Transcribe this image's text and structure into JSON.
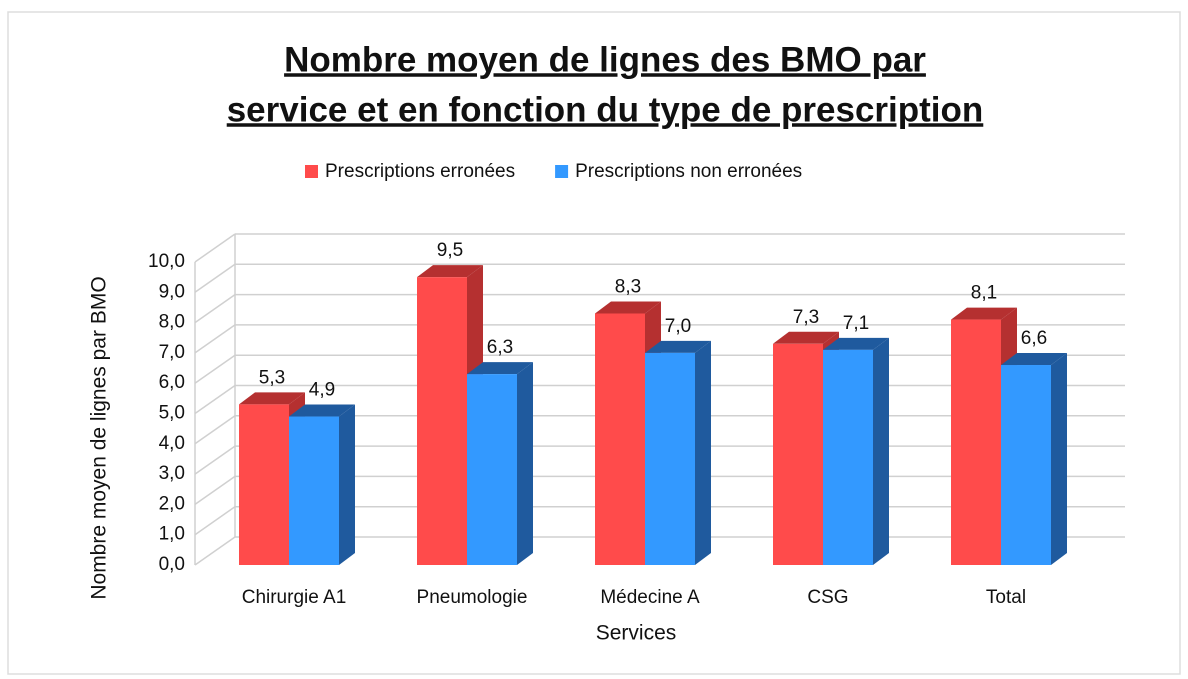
{
  "chart_data": {
    "type": "bar3d",
    "title": [
      "Nombre moyen de lignes des BMO par",
      "service et en fonction du type de prescription"
    ],
    "x_label": "Services",
    "y_label": "Nombre moyen de lignes par BMO",
    "categories": [
      "Chirurgie A1",
      "Pneumologie",
      "Médecine A",
      "CSG",
      "Total"
    ],
    "series": [
      {
        "name": "Prescriptions erronées",
        "color": "#ff4b4b",
        "side_color": "#b53030",
        "values": [
          5.3,
          9.5,
          8.3,
          7.3,
          8.1
        ],
        "value_labels": [
          "5,3",
          "9,5",
          "8,3",
          "7,3",
          "8,1"
        ]
      },
      {
        "name": "Prescriptions non erronées",
        "color": "#3399ff",
        "side_color": "#1f5a9e",
        "values": [
          4.9,
          6.3,
          7.0,
          7.1,
          6.6
        ],
        "value_labels": [
          "4,9",
          "6,3",
          "7,0",
          "7,1",
          "6,6"
        ]
      }
    ],
    "ylim": [
      0,
      10
    ],
    "yticks": [
      {
        "value": 0,
        "label": "0,0"
      },
      {
        "value": 1,
        "label": "1,0"
      },
      {
        "value": 2,
        "label": "2,0"
      },
      {
        "value": 3,
        "label": "3,0"
      },
      {
        "value": 4,
        "label": "4,0"
      },
      {
        "value": 5,
        "label": "5,0"
      },
      {
        "value": 6,
        "label": "6,0"
      },
      {
        "value": 7,
        "label": "7,0"
      },
      {
        "value": 8,
        "label": "8,0"
      },
      {
        "value": 9,
        "label": "9,0"
      },
      {
        "value": 10,
        "label": "10,0"
      }
    ],
    "grid": true,
    "legend": "top"
  }
}
